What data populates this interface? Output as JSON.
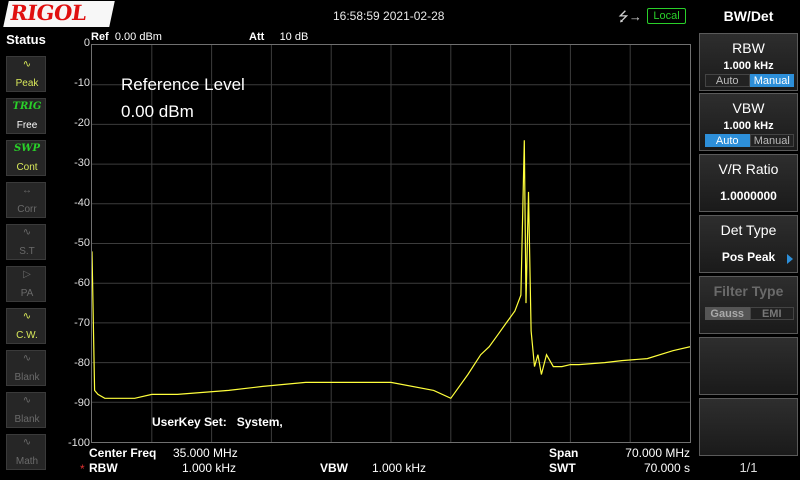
{
  "header": {
    "logo": "RIGOL",
    "datetime": "16:58:59 2021-02-28",
    "usb_icon": "usb-icon",
    "remote_status": "Local"
  },
  "status_panel": {
    "title": "Status",
    "items": [
      {
        "icon": "peak-wave-icon",
        "label": "Peak",
        "state": "active"
      },
      {
        "icon": "TRIG",
        "label": "Free",
        "state": "active"
      },
      {
        "icon": "SWP",
        "label": "Cont",
        "state": "active"
      },
      {
        "icon": "corr-icon",
        "label": "Corr",
        "state": "dim"
      },
      {
        "icon": "st-icon",
        "label": "S.T",
        "state": "dim"
      },
      {
        "icon": "preamp-icon",
        "label": "PA",
        "state": "dim"
      },
      {
        "icon": "cw-wave-icon",
        "label": "C.W.",
        "state": "active"
      },
      {
        "icon": "blank-wave-icon",
        "label": "Blank",
        "state": "dim"
      },
      {
        "icon": "blank-wave-icon",
        "label": "Blank",
        "state": "dim"
      },
      {
        "icon": "math-wave-icon",
        "label": "Math",
        "state": "dim"
      }
    ]
  },
  "plot": {
    "ref_label": "Ref",
    "ref_value": "0.00 dBm",
    "att_label": "Att",
    "att_value": "10 dB",
    "overlay_title": "Reference Level",
    "overlay_value": "0.00 dBm",
    "userkey_label": "UserKey Set:",
    "userkey_value": "System,",
    "y_ticks": [
      "0",
      "-10",
      "-20",
      "-30",
      "-40",
      "-50",
      "-60",
      "-70",
      "-80",
      "-90",
      "-100"
    ],
    "trace_color": "#ffff3c"
  },
  "bottom": {
    "center_freq_label": "Center Freq",
    "center_freq_value": "35.000 MHz",
    "span_label": "Span",
    "span_value": "70.000 MHz",
    "rbw_marker": "*",
    "rbw_label": "RBW",
    "rbw_value": "1.000 kHz",
    "vbw_label": "VBW",
    "vbw_value": "1.000 kHz",
    "swt_label": "SWT",
    "swt_value": "70.000 s"
  },
  "menu": {
    "title": "BW/Det",
    "keys": {
      "rbw": {
        "label": "RBW",
        "value": "1.000 kHz",
        "opt_a": "Auto",
        "opt_b": "Manual",
        "selected": "Manual"
      },
      "vbw": {
        "label": "VBW",
        "value": "1.000 kHz",
        "opt_a": "Auto",
        "opt_b": "Manual",
        "selected": "Auto"
      },
      "vr_ratio": {
        "label": "V/R Ratio",
        "value": "1.0000000"
      },
      "det_type": {
        "label": "Det Type",
        "value": "Pos Peak"
      },
      "filter_type": {
        "label": "Filter Type",
        "opt_a": "Gauss",
        "opt_b": "EMI",
        "selected": "Gauss",
        "enabled": false
      }
    },
    "page": "1/1"
  },
  "colors": {
    "accent": "#2d8fd9",
    "trace": "#ffff3c",
    "status_active": "#d8e85a",
    "local_badge": "#2ad02a",
    "logo_red": "#e01010"
  },
  "chart_data": {
    "type": "line",
    "xlabel": "",
    "ylabel": "",
    "x_unit": "MHz",
    "y_unit": "dBm",
    "xlim": [
      0,
      70
    ],
    "ylim": [
      -100,
      0
    ],
    "grid": true,
    "series": [
      {
        "x": [
          0,
          0.3,
          0.7,
          1.5,
          3,
          5,
          7,
          10,
          13,
          16,
          20,
          25,
          30,
          35,
          40,
          42,
          44,
          45.5,
          46.5,
          47.5,
          48.5,
          49.5,
          50.2,
          50.6,
          50.8,
          51.1,
          51.4,
          51.8,
          52.2,
          52.6,
          53.2,
          54,
          55,
          56,
          57,
          60,
          62,
          65,
          68,
          70
        ],
        "y": [
          -52,
          -87,
          -88,
          -89,
          -89,
          -89,
          -88,
          -88,
          -87.5,
          -87,
          -86,
          -85,
          -85,
          -85,
          -87,
          -89,
          -83,
          -78,
          -76,
          -73,
          -70,
          -67,
          -63,
          -24,
          -65,
          -37,
          -72,
          -81,
          -78,
          -83,
          -78,
          -81,
          -81,
          -80.5,
          -80.5,
          -80,
          -79.5,
          -79,
          -77,
          -76
        ]
      }
    ]
  }
}
